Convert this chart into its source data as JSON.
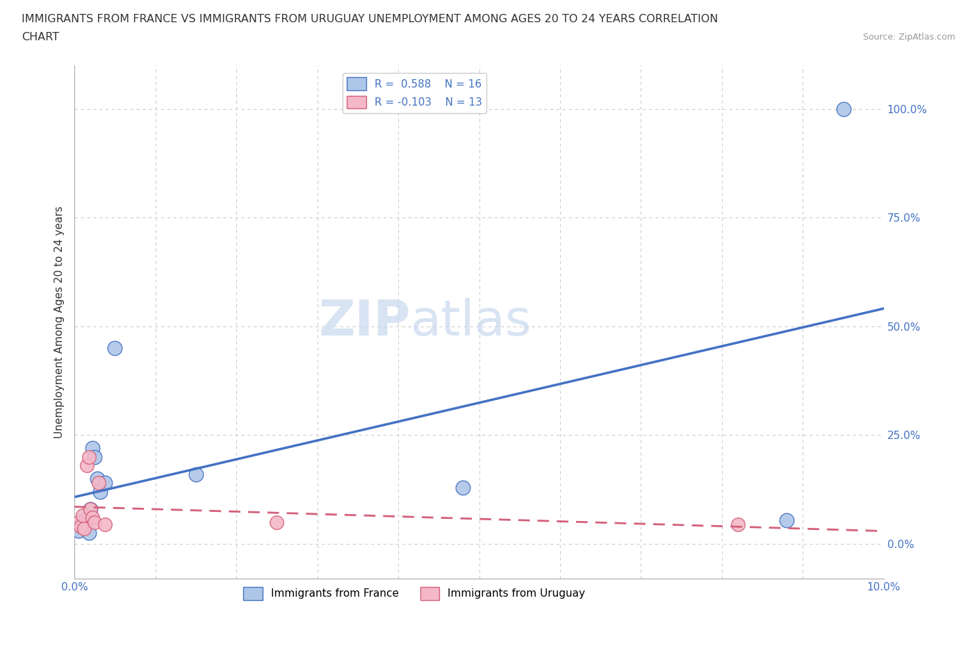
{
  "title_line1": "IMMIGRANTS FROM FRANCE VS IMMIGRANTS FROM URUGUAY UNEMPLOYMENT AMONG AGES 20 TO 24 YEARS CORRELATION",
  "title_line2": "CHART",
  "source": "Source: ZipAtlas.com",
  "ylabel": "Unemployment Among Ages 20 to 24 years",
  "france_r": 0.588,
  "france_n": 16,
  "uruguay_r": -0.103,
  "uruguay_n": 13,
  "france_color": "#aec6e8",
  "france_edge_color": "#4472c4",
  "uruguay_color": "#f4b8c8",
  "uruguay_edge_color": "#d4607a",
  "france_line_color": "#4472c4",
  "uruguay_line_color": "#d4607a",
  "watermark_zip": "ZIP",
  "watermark_atlas": "atlas",
  "xlim": [
    0.0,
    10.0
  ],
  "ylim": [
    -8.0,
    110.0
  ],
  "ytick_vals": [
    0,
    25,
    50,
    75,
    100
  ],
  "ytick_labels": [
    "0.0%",
    "25.0%",
    "50.0%",
    "75.0%",
    "100.0%"
  ],
  "france_x": [
    0.05,
    0.1,
    0.12,
    0.15,
    0.18,
    0.2,
    0.22,
    0.25,
    0.28,
    0.32,
    0.38,
    0.5,
    1.5,
    4.8,
    8.8,
    9.5
  ],
  "france_y": [
    3.0,
    5.0,
    4.0,
    6.0,
    2.5,
    8.0,
    22.0,
    20.0,
    15.0,
    12.0,
    14.0,
    45.0,
    16.0,
    13.0,
    5.5,
    100.0
  ],
  "uruguay_x": [
    0.05,
    0.08,
    0.1,
    0.12,
    0.15,
    0.18,
    0.2,
    0.22,
    0.25,
    0.3,
    0.38,
    2.5,
    8.2
  ],
  "uruguay_y": [
    5.0,
    4.0,
    6.5,
    3.5,
    18.0,
    20.0,
    8.0,
    6.0,
    5.0,
    14.0,
    4.5,
    5.0,
    4.5
  ],
  "background_color": "#ffffff",
  "grid_color": "#cccccc",
  "label_color_blue": "#4472c4",
  "title_color": "#333333",
  "ylabel_color": "#333333",
  "source_color": "#999999",
  "legend_label_color": "#4472c4"
}
